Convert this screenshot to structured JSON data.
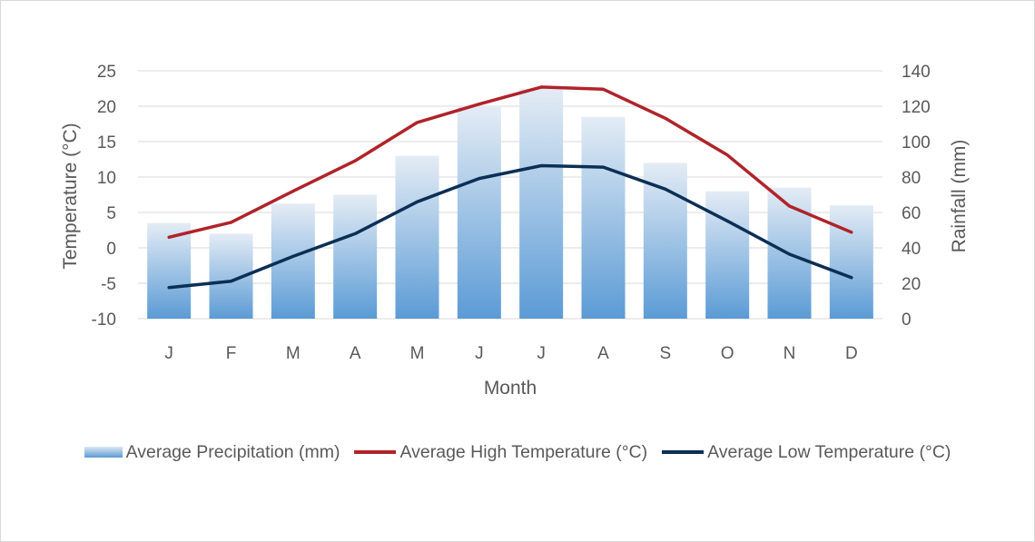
{
  "chart_data": {
    "type": "bar+line",
    "categories": [
      "J",
      "F",
      "M",
      "A",
      "M",
      "J",
      "J",
      "A",
      "S",
      "O",
      "N",
      "D"
    ],
    "xlabel": "Month",
    "ylabel_left": "Temperature (°C)",
    "ylabel_right": "Rainfall (mm)",
    "ylim_left": [
      -10,
      25
    ],
    "yticks_left": [
      "25",
      "20",
      "15",
      "10",
      "5",
      "0",
      "-5",
      "-10"
    ],
    "ylim_right": [
      0,
      140
    ],
    "yticks_right": [
      "140",
      "120",
      "100",
      "80",
      "60",
      "40",
      "20",
      "0"
    ],
    "grid": true,
    "legend_position": "bottom",
    "series": [
      {
        "name": "Average Precipitation (mm)",
        "kind": "bar",
        "axis": "right",
        "color": "#5b9bd5",
        "values": [
          54,
          48,
          65,
          70,
          92,
          120,
          130,
          114,
          88,
          72,
          74,
          64
        ]
      },
      {
        "name": "Average High Temperature (°C)",
        "kind": "line",
        "axis": "left",
        "color": "#b0232a",
        "values": [
          1.5,
          3.6,
          8.0,
          12.3,
          17.7,
          20.3,
          22.7,
          22.4,
          18.3,
          13.1,
          5.9,
          2.2
        ]
      },
      {
        "name": "Average Low Temperature (°C)",
        "kind": "line",
        "axis": "left",
        "color": "#0b2f55",
        "values": [
          -5.6,
          -4.7,
          -1.2,
          2.0,
          6.5,
          9.8,
          11.6,
          11.4,
          8.3,
          3.8,
          -0.9,
          -4.2
        ]
      }
    ]
  }
}
